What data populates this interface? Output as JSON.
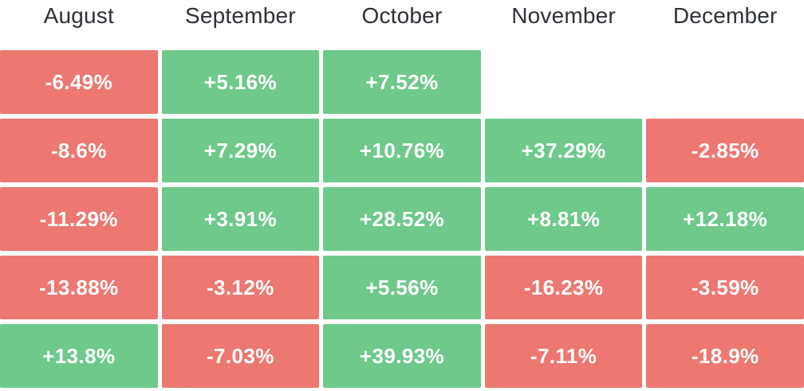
{
  "colors": {
    "positive_cell": "#6EC98B",
    "negative_cell": "#EC7871",
    "cell_text": "#FFFFFF",
    "header_text": "#2D3139",
    "background": "#FFFFFF"
  },
  "chart_data": {
    "type": "heatmap",
    "columns": [
      "August",
      "September",
      "October",
      "November",
      "December"
    ],
    "rows": [
      [
        -6.49,
        5.16,
        7.52,
        null,
        null
      ],
      [
        -8.6,
        7.29,
        10.76,
        37.29,
        -2.85
      ],
      [
        -11.29,
        3.91,
        28.52,
        8.81,
        12.18
      ],
      [
        -13.88,
        -3.12,
        5.56,
        -16.23,
        -3.59
      ],
      [
        13.8,
        -7.03,
        39.93,
        -7.11,
        -18.9
      ]
    ],
    "cell_labels": [
      [
        "-6.49%",
        "+5.16%",
        "+7.52%",
        null,
        null
      ],
      [
        "-8.6%",
        "+7.29%",
        "+10.76%",
        "+37.29%",
        "-2.85%"
      ],
      [
        "-11.29%",
        "+3.91%",
        "+28.52%",
        "+8.81%",
        "+12.18%"
      ],
      [
        "-13.88%",
        "-3.12%",
        "+5.56%",
        "-16.23%",
        "-3.59%"
      ],
      [
        "+13.8%",
        "-7.03%",
        "+39.93%",
        "-7.11%",
        "-18.9%"
      ]
    ],
    "layout": {
      "grid": "off",
      "value_sign_colors": {
        "positive": "#6EC98B",
        "negative": "#EC7871"
      }
    }
  }
}
